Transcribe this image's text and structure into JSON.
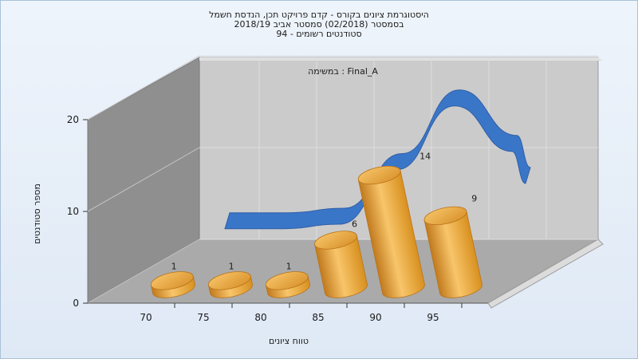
{
  "titles": {
    "line1": "היסטוגרמת ציונים בקורס - קדם פרויקט תכן, הנדסת חשמל",
    "line2": "בסמסטר  (02/2018)  סמסטר אביב 2018/19",
    "line3": "סטודנטים רשומים - 94"
  },
  "chart_data": {
    "type": "bar",
    "subtitle": "במשימה : Final_A",
    "xlabel": "טווח ציונים",
    "ylabel": "מספר סטודנטים",
    "x_ticks": [
      "70",
      "75",
      "80",
      "85",
      "90",
      "95"
    ],
    "y_ticks": [
      "0",
      "10",
      "20"
    ],
    "ylim": [
      0,
      20
    ],
    "categories": [
      "70",
      "75",
      "80",
      "85",
      "90",
      "95"
    ],
    "values": [
      1,
      1,
      1,
      6,
      14,
      9
    ],
    "data_labels": [
      "1",
      "1",
      "1",
      "6",
      "14",
      "9"
    ],
    "curve": [
      4.5,
      4.5,
      5,
      11,
      18,
      13
    ],
    "colors": {
      "bar": "#f0ad3c",
      "curve": "#3a76c8",
      "back_wall": "#c9c9c9",
      "side_wall": "#8f8f8f",
      "floor": "#a9a9a9"
    }
  }
}
